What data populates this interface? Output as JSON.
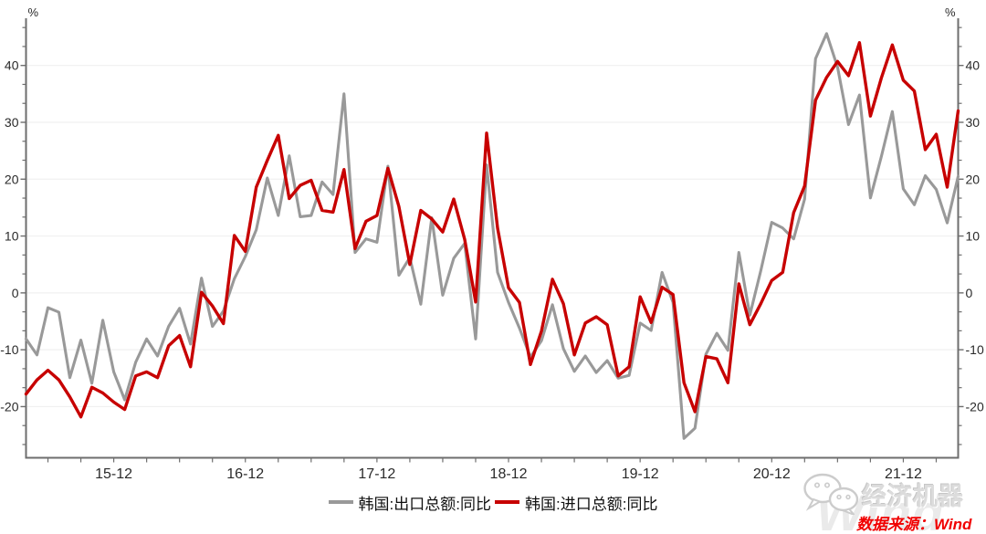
{
  "legend": {
    "exports_label": "韩国:出口总额:同比",
    "imports_label": "韩国:进口总额:同比"
  },
  "footer": {
    "source_label": "数据来源：Wind",
    "logo_text": "经济机器",
    "logo_icon": "wechat-icon",
    "watermark": "Wind"
  },
  "colors": {
    "export_line": "#999999",
    "import_line": "#c70000",
    "axis": "#6e6e6e",
    "grid": "#f0f0f0",
    "label_text": "#2a2a2a",
    "source_text": "#f10000"
  },
  "chart_data": {
    "type": "line",
    "title": "",
    "y_axis_unit": "%",
    "ylim": [
      -29,
      48.3
    ],
    "y_ticks": [
      -20,
      -10,
      0,
      10,
      20,
      30,
      40
    ],
    "grid": "horizontal-major",
    "legend_position": "bottom",
    "x_tick_labels": [
      "15-12",
      "16-12",
      "17-12",
      "18-12",
      "19-12",
      "20-12",
      "21-12"
    ],
    "x_tick_indices": [
      8,
      20,
      32,
      44,
      56,
      68,
      80
    ],
    "x_minor_tick_every_months": 3,
    "x": [
      "2015-04",
      "2015-05",
      "2015-06",
      "2015-07",
      "2015-08",
      "2015-09",
      "2015-10",
      "2015-11",
      "2015-12",
      "2016-01",
      "2016-02",
      "2016-03",
      "2016-04",
      "2016-05",
      "2016-06",
      "2016-07",
      "2016-08",
      "2016-09",
      "2016-10",
      "2016-11",
      "2016-12",
      "2017-01",
      "2017-02",
      "2017-03",
      "2017-04",
      "2017-05",
      "2017-06",
      "2017-07",
      "2017-08",
      "2017-09",
      "2017-10",
      "2017-11",
      "2017-12",
      "2018-01",
      "2018-02",
      "2018-03",
      "2018-04",
      "2018-05",
      "2018-06",
      "2018-07",
      "2018-08",
      "2018-09",
      "2018-10",
      "2018-11",
      "2018-12",
      "2019-01",
      "2019-02",
      "2019-03",
      "2019-04",
      "2019-05",
      "2019-06",
      "2019-07",
      "2019-08",
      "2019-09",
      "2019-10",
      "2019-11",
      "2019-12",
      "2020-01",
      "2020-02",
      "2020-03",
      "2020-04",
      "2020-05",
      "2020-06",
      "2020-07",
      "2020-08",
      "2020-09",
      "2020-10",
      "2020-11",
      "2020-12",
      "2021-01",
      "2021-02",
      "2021-03",
      "2021-04",
      "2021-05",
      "2021-06",
      "2021-07",
      "2021-08",
      "2021-09",
      "2021-10",
      "2021-11",
      "2021-12",
      "2022-01",
      "2022-02",
      "2022-03",
      "2022-04",
      "2022-05"
    ],
    "series": [
      {
        "name": "韩国:出口总额:同比",
        "color": "#999999",
        "values": [
          -8.1,
          -10.9,
          -2.6,
          -3.4,
          -14.9,
          -8.3,
          -15.9,
          -4.8,
          -13.9,
          -18.8,
          -12.2,
          -8.1,
          -11.1,
          -5.9,
          -2.7,
          -9.0,
          2.6,
          -5.9,
          -3.2,
          2.5,
          6.4,
          11.1,
          20.2,
          13.6,
          24.1,
          13.4,
          13.6,
          19.5,
          17.3,
          35.0,
          7.1,
          9.5,
          8.9,
          22.3,
          3.1,
          6.2,
          -2.0,
          13.2,
          -0.4,
          6.1,
          8.7,
          -8.1,
          22.5,
          3.6,
          -1.7,
          -6.2,
          -11.3,
          -8.4,
          -2.1,
          -9.8,
          -13.8,
          -11.1,
          -14.0,
          -11.9,
          -15.0,
          -14.5,
          -5.3,
          -6.6,
          3.6,
          -1.7,
          -25.6,
          -23.8,
          -10.8,
          -7.1,
          -10.1,
          7.1,
          -3.9,
          3.9,
          12.4,
          11.4,
          9.5,
          16.5,
          41.2,
          45.6,
          39.7,
          29.6,
          34.8,
          16.7,
          24.0,
          31.9,
          18.3,
          15.5,
          20.6,
          18.2,
          12.3,
          20.5
        ]
      },
      {
        "name": "韩国:进口总额:同比",
        "color": "#c70000",
        "values": [
          -17.8,
          -15.3,
          -13.6,
          -15.3,
          -18.3,
          -21.8,
          -16.6,
          -17.6,
          -19.2,
          -20.5,
          -14.6,
          -13.9,
          -14.9,
          -9.3,
          -7.5,
          -13.0,
          0.1,
          -2.3,
          -5.4,
          10.1,
          7.3,
          18.6,
          23.3,
          27.7,
          16.6,
          18.9,
          19.8,
          14.5,
          14.2,
          21.7,
          7.8,
          12.6,
          13.6,
          21.9,
          15.2,
          5.0,
          14.5,
          13.0,
          10.7,
          16.5,
          9.4,
          -1.6,
          28.1,
          11.4,
          0.9,
          -1.7,
          -12.6,
          -6.7,
          2.4,
          -1.9,
          -10.9,
          -5.3,
          -4.2,
          -5.6,
          -14.6,
          -13.0,
          -0.7,
          -5.2,
          1.0,
          -0.3,
          -15.8,
          -20.9,
          -11.2,
          -11.6,
          -15.8,
          1.6,
          -5.6,
          -1.9,
          2.2,
          3.6,
          14.1,
          18.8,
          33.9,
          37.9,
          40.7,
          38.2,
          44.0,
          31.1,
          37.8,
          43.6,
          37.4,
          35.5,
          25.2,
          27.9,
          18.6,
          32.0
        ]
      }
    ]
  }
}
